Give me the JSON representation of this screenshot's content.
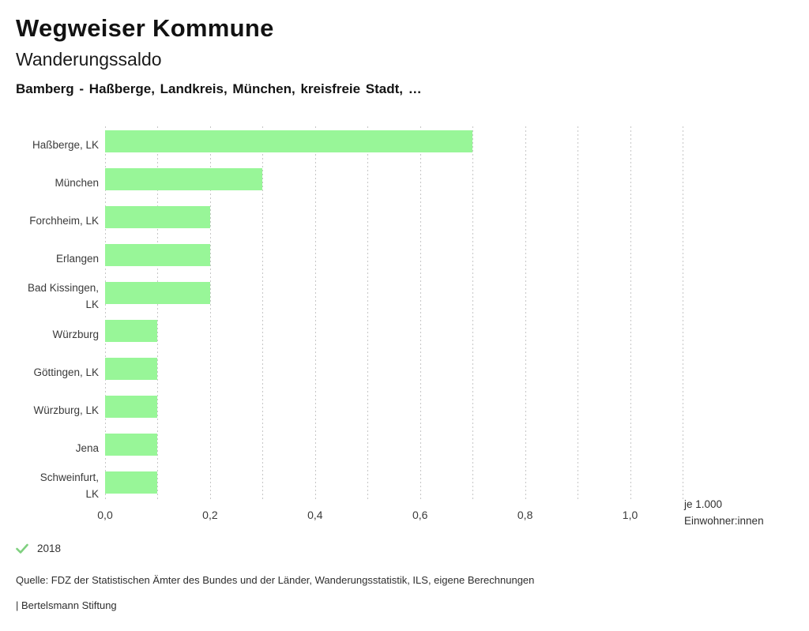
{
  "header": {
    "title": "Wegweiser Kommune",
    "subtitle": "Wanderungssaldo",
    "selection": "Bamberg - Haßberge, Landkreis, München, kreisfreie Stadt, …"
  },
  "chart_data": {
    "type": "bar",
    "orientation": "horizontal",
    "title": "Wanderungssaldo",
    "categories": [
      "Haßberge, LK",
      "München",
      "Forchheim, LK",
      "Erlangen",
      "Bad Kissingen,\nLK",
      "Würzburg",
      "Göttingen, LK",
      "Würzburg, LK",
      "Jena",
      "Schweinfurt,\nLK"
    ],
    "values": [
      0.7,
      0.3,
      0.2,
      0.2,
      0.2,
      0.1,
      0.1,
      0.1,
      0.1,
      0.1
    ],
    "xlabel_line1": "je 1.000",
    "xlabel_line2": "Einwohner:innen",
    "xlim": [
      0,
      1.1
    ],
    "x_ticks": [
      "0,0",
      "0,2",
      "0,4",
      "0,6",
      "0,8",
      "1,0"
    ],
    "x_tick_values": [
      0,
      0.2,
      0.4,
      0.6,
      0.8,
      1.0
    ],
    "gridline_step": 0.1,
    "grid": true,
    "legend_position": "bottom",
    "bar_color": "#98f698",
    "gridline_color": "#c6c6c6"
  },
  "legend": {
    "year": "2018",
    "check_icon": "checkmark-icon",
    "check_color": "#7fd07f"
  },
  "footer": {
    "source": "Quelle: FDZ der Statistischen Ämter des Bundes und der Länder, Wanderungsstatistik, ILS, eigene Berechnungen",
    "attribution": "| Bertelsmann Stiftung"
  }
}
